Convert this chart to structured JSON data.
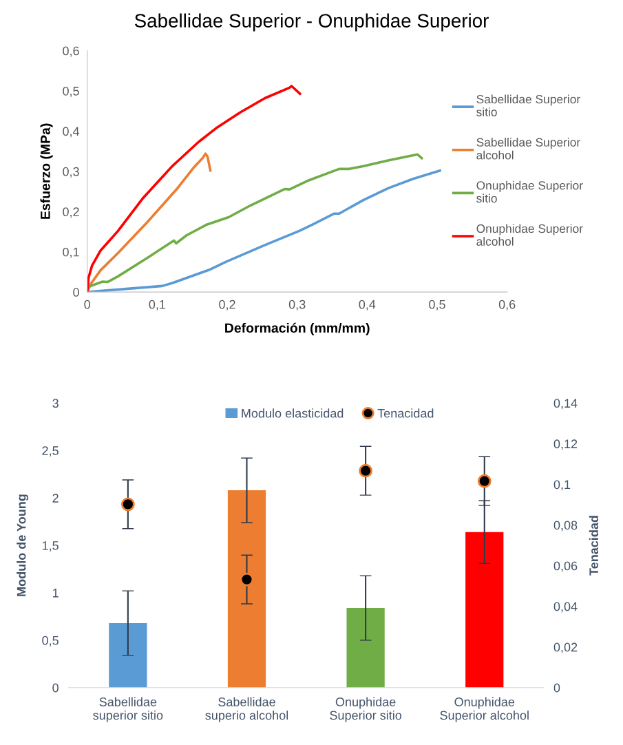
{
  "chart_data": [
    {
      "type": "line",
      "title": "Sabellidae Superior - Onuphidae Superior",
      "xlabel": "Deformación (mm/mm)",
      "ylabel": "Esfuerzo (MPa)",
      "xlim": [
        0,
        0.6
      ],
      "ylim": [
        0,
        0.6
      ],
      "xticks": [
        0,
        {
          "value": 0.1,
          "label": "0,1"
        },
        {
          "value": 0.2,
          "label": "0,2"
        },
        {
          "value": 0.3,
          "label": "0,3"
        },
        {
          "value": 0.4,
          "label": "0,4"
        },
        {
          "value": 0.5,
          "label": "0,5"
        },
        {
          "value": 0.6,
          "label": "0,6"
        }
      ],
      "yticks": [
        0,
        {
          "value": 0.1,
          "label": "0,1"
        },
        {
          "value": 0.2,
          "label": "0,2"
        },
        {
          "value": 0.3,
          "label": "0,3"
        },
        {
          "value": 0.4,
          "label": "0,4"
        },
        {
          "value": 0.5,
          "label": "0,5"
        },
        {
          "value": 0.6,
          "label": "0,6"
        }
      ],
      "grid": false,
      "legend": "right",
      "marker": "none",
      "line_style": "solid",
      "series": [
        {
          "name": "Sabellidae Superior sitio",
          "color": "#5b9bd5",
          "x": [
            0,
            0.107,
            0.121,
            0.174,
            0.198,
            0.254,
            0.303,
            0.321,
            0.353,
            0.36,
            0.395,
            0.43,
            0.465,
            0.504
          ],
          "values": [
            0,
            0.015,
            0.022,
            0.055,
            0.075,
            0.117,
            0.152,
            0.167,
            0.195,
            0.195,
            0.229,
            0.258,
            0.281,
            0.302
          ]
        },
        {
          "name": "Sabellidae Superior alcohol",
          "color": "#ed7d31",
          "x": [
            0,
            0.005,
            0.019,
            0.044,
            0.086,
            0.128,
            0.152,
            0.165,
            0.169,
            0.172,
            0.176
          ],
          "values": [
            0,
            0.02,
            0.054,
            0.097,
            0.174,
            0.256,
            0.309,
            0.333,
            0.344,
            0.336,
            0.302
          ]
        },
        {
          "name": "Onuphidae Superior sitio",
          "color": "#70ad47",
          "x": [
            0,
            0.003,
            0.022,
            0.029,
            0.044,
            0.086,
            0.124,
            0.127,
            0.142,
            0.17,
            0.202,
            0.233,
            0.282,
            0.289,
            0.317,
            0.36,
            0.374,
            0.395,
            0.43,
            0.472,
            0.478
          ],
          "values": [
            0,
            0.014,
            0.026,
            0.025,
            0.039,
            0.085,
            0.128,
            0.121,
            0.141,
            0.167,
            0.186,
            0.215,
            0.256,
            0.255,
            0.278,
            0.306,
            0.306,
            0.313,
            0.327,
            0.342,
            0.333
          ]
        },
        {
          "name": "Onuphidae Superior alcohol",
          "color": "#ff0000",
          "x": [
            0,
            0.002,
            0.007,
            0.019,
            0.044,
            0.079,
            0.121,
            0.159,
            0.184,
            0.219,
            0.254,
            0.289,
            0.292,
            0.304
          ],
          "values": [
            0,
            0.036,
            0.066,
            0.103,
            0.152,
            0.232,
            0.312,
            0.373,
            0.407,
            0.447,
            0.482,
            0.508,
            0.512,
            0.493
          ]
        }
      ]
    },
    {
      "type": "bar",
      "ylabel": "Modulo de Young",
      "y2label": "Tenacidad",
      "categories": [
        "Sabellidae superior sitio",
        "Sabellidae superio alcohol",
        "Onuphidae Superior sitio",
        "Onuphidae Superior alcohol"
      ],
      "ylim": [
        0,
        3
      ],
      "yticks": [
        0,
        {
          "value": 0.5,
          "label": "0,5"
        },
        1,
        {
          "value": 1.5,
          "label": "1,5"
        },
        2,
        {
          "value": 2.5,
          "label": "2,5"
        },
        3
      ],
      "y2lim": [
        0,
        0.14
      ],
      "y2ticks": [
        0,
        {
          "value": 0.02,
          "label": "0,02"
        },
        {
          "value": 0.04,
          "label": "0,04"
        },
        {
          "value": 0.06,
          "label": "0,06"
        },
        {
          "value": 0.08,
          "label": "0,08"
        },
        {
          "value": 0.1,
          "label": "0,1"
        },
        {
          "value": 0.12,
          "label": "0,12"
        },
        {
          "value": 0.14,
          "label": "0,14"
        }
      ],
      "grid": false,
      "legend": "top",
      "series": [
        {
          "name": "Modulo elasticidad",
          "type": "bar",
          "color": "#5b9bd5",
          "colors": [
            "#5b9bd5",
            "#ed7d31",
            "#70ad47",
            "#ff0000"
          ],
          "values": [
            0.68,
            2.08,
            0.84,
            1.64
          ],
          "errors": [
            0.34,
            0.34,
            0.34,
            0.33
          ]
        },
        {
          "name": "Tenacidad",
          "type": "scatter",
          "axis": "y2",
          "color": "#ed7d31",
          "marker": "circle",
          "values": [
            0.0902,
            0.0532,
            0.1067,
            0.1016
          ],
          "errors": [
            0.012,
            0.012,
            0.012,
            0.012
          ]
        }
      ]
    }
  ]
}
